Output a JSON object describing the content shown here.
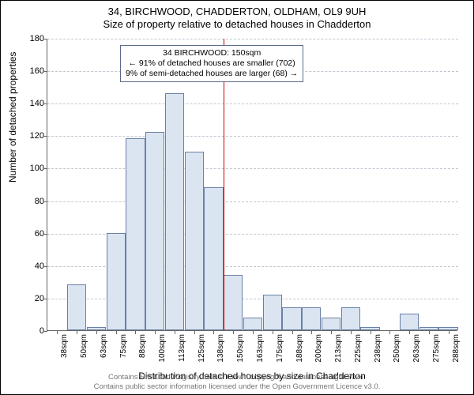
{
  "title": {
    "line1": "34, BIRCHWOOD, CHADDERTON, OLDHAM, OL9 9UH",
    "line2": "Size of property relative to detached houses in Chadderton"
  },
  "chart": {
    "type": "histogram",
    "ylabel": "Number of detached properties",
    "xlabel": "Distribution of detached houses by size in Chadderton",
    "ylim": [
      0,
      180
    ],
    "ytick_step": 20,
    "xticks": [
      "38sqm",
      "50sqm",
      "63sqm",
      "75sqm",
      "88sqm",
      "100sqm",
      "113sqm",
      "125sqm",
      "138sqm",
      "150sqm",
      "163sqm",
      "175sqm",
      "188sqm",
      "200sqm",
      "213sqm",
      "225sqm",
      "238sqm",
      "250sqm",
      "263sqm",
      "275sqm",
      "288sqm"
    ],
    "values": [
      0,
      28,
      2,
      60,
      118,
      122,
      146,
      110,
      88,
      34,
      8,
      22,
      14,
      14,
      8,
      14,
      2,
      0,
      10,
      2,
      2
    ],
    "bar_fill": "#dbe5f1",
    "bar_stroke": "#6a80a6",
    "grid_color": "#c0c7d0",
    "axis_color": "#666666",
    "background_color": "#ffffff",
    "marker": {
      "x_index_after": 9,
      "color": "#cc0000"
    }
  },
  "annotation": {
    "line1": "34 BIRCHWOOD: 150sqm",
    "line2": "← 91% of detached houses are smaller (702)",
    "line3": "9% of semi-detached houses are larger (68) →",
    "border_color": "#5b6b8a"
  },
  "attribution": {
    "line1": "Contains HM Land Registry data © Crown copyright and database right 2024.",
    "line2": "Contains public sector information licensed under the Open Government Licence v3.0."
  }
}
